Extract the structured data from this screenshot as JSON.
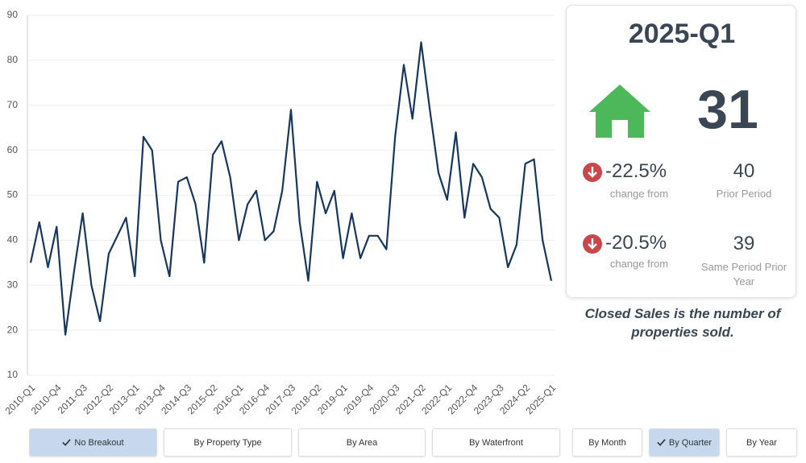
{
  "chart_data": {
    "type": "line",
    "categories": [
      "2010-Q1",
      null,
      null,
      "2010-Q4",
      null,
      null,
      "2011-Q3",
      null,
      null,
      "2012-Q2",
      null,
      null,
      "2013-Q1",
      null,
      null,
      "2013-Q4",
      null,
      null,
      "2014-Q3",
      null,
      null,
      "2015-Q2",
      null,
      null,
      "2016-Q1",
      null,
      null,
      "2016-Q4",
      null,
      null,
      "2017-Q3",
      null,
      null,
      "2018-Q2",
      null,
      null,
      "2019-Q1",
      null,
      null,
      "2019-Q4",
      null,
      null,
      "2020-Q3",
      null,
      null,
      "2021-Q2",
      null,
      null,
      "2022-Q1",
      null,
      null,
      "2022-Q4",
      null,
      null,
      "2023-Q3",
      null,
      null,
      "2024-Q2",
      null,
      null,
      "2025-Q1"
    ],
    "values": [
      35,
      44,
      34,
      43,
      19,
      33,
      46,
      30,
      22,
      37,
      41,
      45,
      32,
      63,
      60,
      40,
      32,
      53,
      54,
      48,
      35,
      59,
      62,
      54,
      40,
      48,
      51,
      40,
      42,
      51,
      69,
      44,
      31,
      53,
      46,
      51,
      36,
      46,
      36,
      41,
      41,
      38,
      63,
      79,
      67,
      84,
      69,
      55,
      49,
      64,
      45,
      57,
      54,
      47,
      45,
      34,
      39,
      57,
      58,
      40,
      31
    ],
    "color": "#17375e",
    "ylim": [
      10,
      90
    ],
    "yticks": [
      10,
      20,
      30,
      40,
      50,
      60,
      70,
      80,
      90
    ],
    "grid": true
  },
  "summary": {
    "period": "2025-Q1",
    "value": "31",
    "changes": [
      {
        "change": "-22.5%",
        "caption": "change from",
        "value": "40",
        "label": "Prior Period"
      },
      {
        "change": "-20.5%",
        "caption": "change from",
        "value": "39",
        "label": "Same Period Prior Year"
      }
    ],
    "note": "Closed Sales is the number of properties sold."
  },
  "buttons": [
    {
      "label": "No Breakout",
      "selected": true
    },
    {
      "label": "By Property Type",
      "selected": false
    },
    {
      "label": "By Area",
      "selected": false
    },
    {
      "label": "By Waterfront",
      "selected": false
    },
    {
      "label": "By Month",
      "selected": false
    },
    {
      "label": "By Quarter",
      "selected": true
    },
    {
      "label": "By Year",
      "selected": false
    }
  ]
}
